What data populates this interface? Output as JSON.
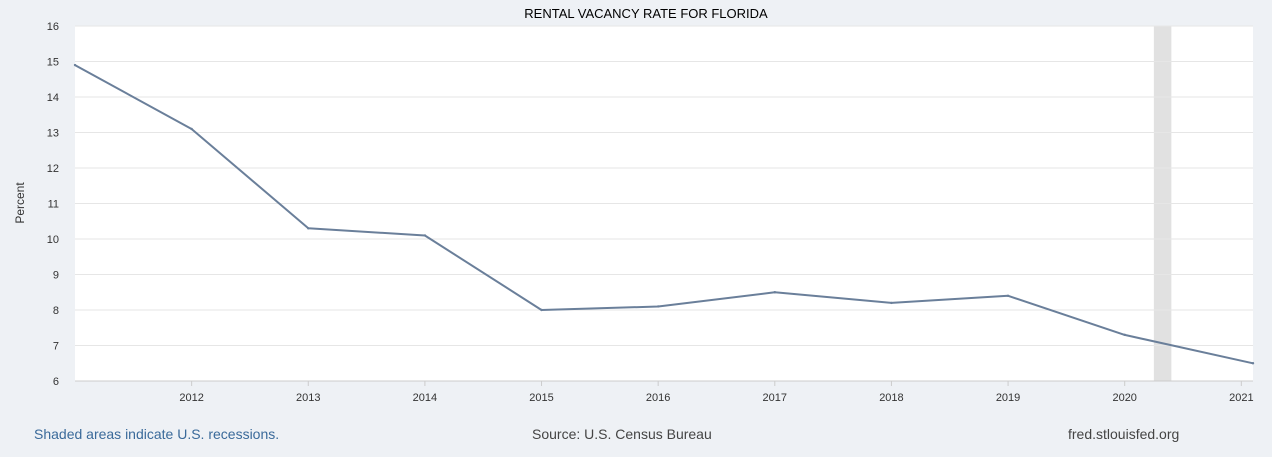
{
  "chart_data": {
    "type": "line",
    "title": "RENTAL VACANCY RATE FOR FLORIDA",
    "ylabel": "Percent",
    "xlabel": "",
    "xlim": [
      2011,
      2021.1
    ],
    "ylim": [
      6,
      16
    ],
    "y_ticks": [
      6,
      7,
      8,
      9,
      10,
      11,
      12,
      13,
      14,
      15,
      16
    ],
    "x_ticks": [
      "2012",
      "2013",
      "2014",
      "2015",
      "2016",
      "2017",
      "2018",
      "2019",
      "2020",
      "2021"
    ],
    "grid": true,
    "series": [
      {
        "name": "Rental Vacancy Rate for Florida",
        "color": "#6a7f9a",
        "x": [
          2011,
          2012,
          2013,
          2014,
          2015,
          2016,
          2017,
          2018,
          2019,
          2020,
          2021.1
        ],
        "values": [
          14.9,
          13.1,
          10.3,
          10.1,
          8.0,
          8.1,
          8.5,
          8.2,
          8.4,
          7.3,
          6.5
        ]
      }
    ],
    "recessions": [
      {
        "start": 2020.25,
        "end": 2020.4
      }
    ]
  },
  "footer": {
    "note": "Shaded areas indicate U.S. recessions.",
    "source": "Source: U.S. Census Bureau",
    "site": "fred.stlouisfed.org"
  },
  "colors": {
    "plot_bg": "#ffffff",
    "gridline": "#e6e6e6",
    "recession": "#e1e1e1",
    "line": "#6a7f9a",
    "link": "#3a6a9a"
  }
}
